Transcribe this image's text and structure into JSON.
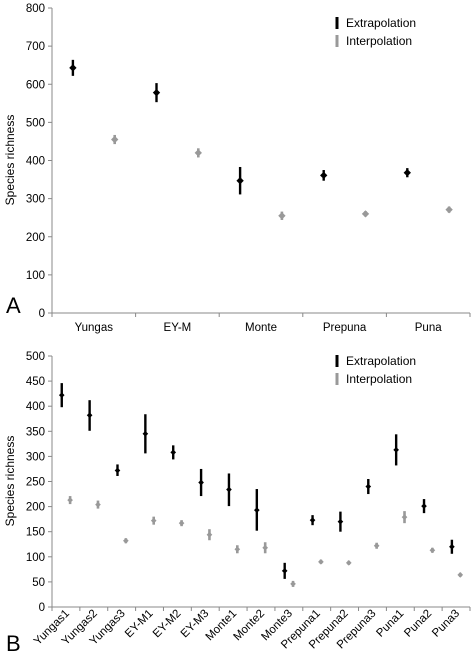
{
  "chart_data": [
    {
      "type": "scatter",
      "panel_label": "A",
      "ylabel": "Species richness",
      "ylim": [
        0,
        800
      ],
      "yticks": [
        0,
        100,
        200,
        300,
        400,
        500,
        600,
        700,
        800
      ],
      "categories": [
        "Yungas",
        "EY-M",
        "Monte",
        "Prepuna",
        "Puna"
      ],
      "legend_position": "top-right",
      "series": [
        {
          "name": "Extrapolation",
          "color": "#000000",
          "values": [
            643,
            578,
            347,
            361,
            368
          ],
          "lower": [
            622,
            553,
            311,
            347,
            356
          ],
          "upper": [
            664,
            603,
            383,
            375,
            380
          ]
        },
        {
          "name": "Interpolation",
          "color": "#999999",
          "values": [
            455,
            420,
            255,
            260,
            271
          ],
          "lower": [
            443,
            408,
            244,
            253,
            263
          ],
          "upper": [
            467,
            432,
            266,
            267,
            279
          ]
        }
      ]
    },
    {
      "type": "scatter",
      "panel_label": "B",
      "ylabel": "Species richness",
      "ylim": [
        0,
        500
      ],
      "yticks": [
        0,
        50,
        100,
        150,
        200,
        250,
        300,
        350,
        400,
        450,
        500
      ],
      "categories": [
        "Yungas1",
        "Yungas2",
        "Yungas3",
        "EY-M1",
        "EY-M2",
        "EY-M3",
        "Monte1",
        "Monte2",
        "Monte3",
        "Prepuna1",
        "Prepuna2",
        "Prepuna3",
        "Puna1",
        "Puna2",
        "Puna3"
      ],
      "legend_position": "top-right",
      "series": [
        {
          "name": "Extrapolation",
          "color": "#000000",
          "values": [
            422,
            382,
            272,
            345,
            308,
            248,
            234,
            193,
            72,
            173,
            170,
            240,
            313,
            201,
            120
          ],
          "lower": [
            398,
            351,
            261,
            306,
            294,
            221,
            201,
            152,
            56,
            163,
            150,
            225,
            282,
            187,
            106
          ],
          "upper": [
            446,
            412,
            284,
            384,
            322,
            275,
            266,
            235,
            88,
            183,
            190,
            255,
            344,
            215,
            134
          ]
        },
        {
          "name": "Interpolation",
          "color": "#999999",
          "values": [
            213,
            204,
            132,
            172,
            167,
            144,
            115,
            118,
            46,
            90,
            88,
            122,
            179,
            113,
            64
          ],
          "lower": [
            205,
            196,
            127,
            164,
            161,
            133,
            107,
            107,
            40,
            86,
            84,
            116,
            167,
            108,
            60
          ],
          "upper": [
            221,
            212,
            137,
            180,
            173,
            155,
            123,
            129,
            52,
            94,
            92,
            128,
            191,
            118,
            68
          ]
        }
      ]
    }
  ]
}
